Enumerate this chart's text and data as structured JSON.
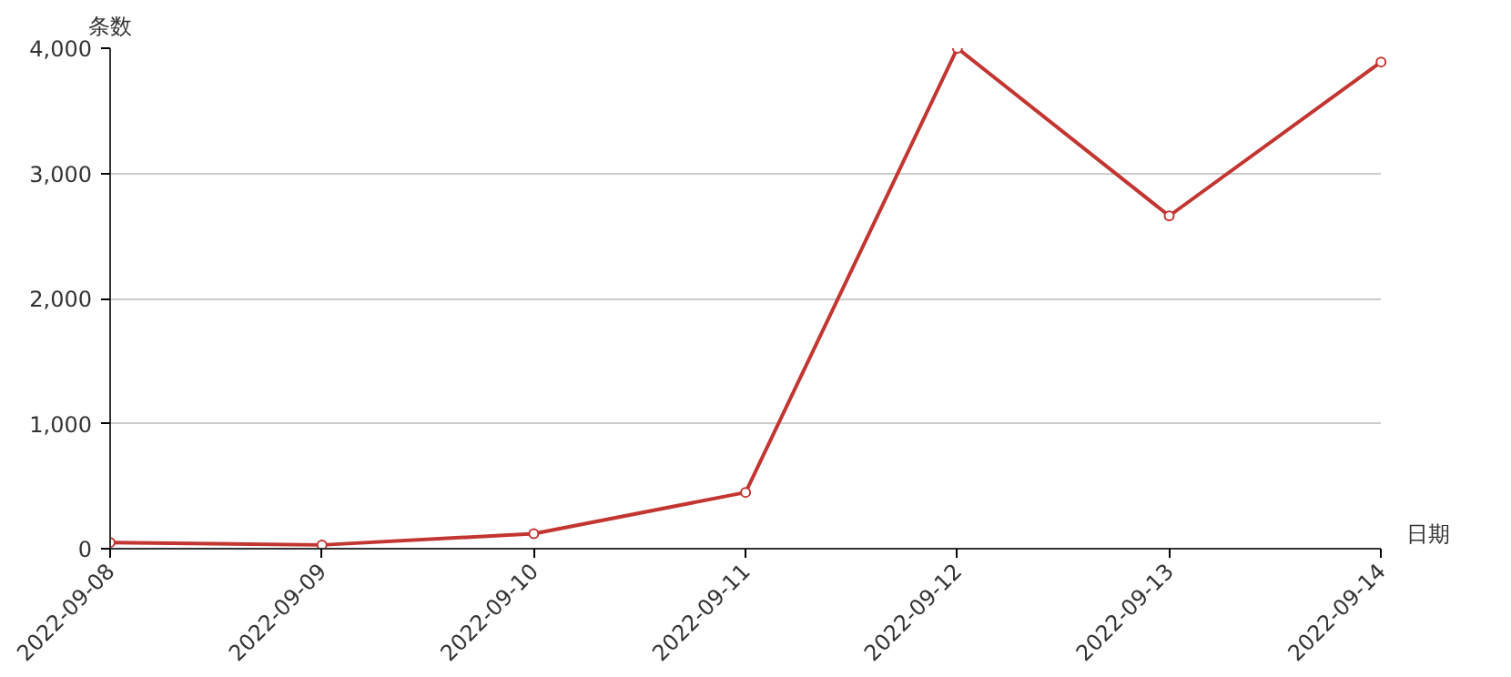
{
  "chart_data": {
    "type": "line",
    "xlabel": "日期",
    "ylabel": "条数",
    "categories": [
      "2022-09-08",
      "2022-09-09",
      "2022-09-10",
      "2022-09-11",
      "2022-09-12",
      "2022-09-13",
      "2022-09-14"
    ],
    "series": [
      {
        "color": "#c23531",
        "values": [
          50,
          30,
          120,
          450,
          4000,
          2660,
          3890
        ]
      }
    ],
    "ylim": [
      0,
      4000
    ],
    "yticks": [
      {
        "value": 0,
        "label": "0"
      },
      {
        "value": 1000,
        "label": "1,000"
      },
      {
        "value": 2000,
        "label": "2,000"
      },
      {
        "value": 3000,
        "label": "3,000"
      },
      {
        "value": 4000,
        "label": "4,000"
      }
    ],
    "grid": "y",
    "marker": "circle",
    "line_style": "solid"
  }
}
